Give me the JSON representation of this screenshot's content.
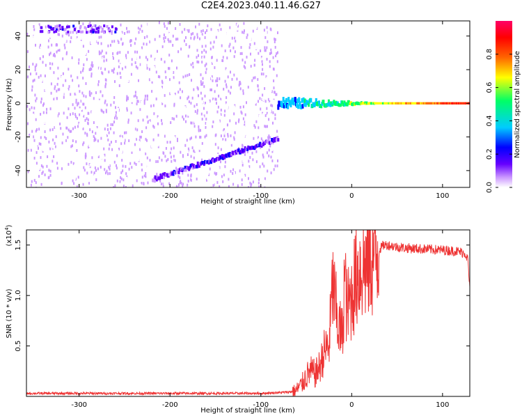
{
  "title": "C2E4.2023.040.11.46.G27",
  "chart_data": [
    {
      "type": "heatmap",
      "xlabel": "Height of straight line (km)",
      "ylabel": "Frequency (Hz)",
      "xlim": [
        -358,
        130
      ],
      "ylim": [
        -50,
        49
      ],
      "xticks": [
        -300,
        -200,
        -100,
        0,
        100
      ],
      "yticks": [
        -40,
        -20,
        0,
        20,
        40
      ],
      "noise_region_x": [
        -358,
        -82
      ],
      "lower_band": {
        "x": [
          -220,
          -82
        ],
        "y_start": -45,
        "y_end": -21
      },
      "upper_band": {
        "x": [
          -345,
          -260
        ],
        "y": 45
      },
      "carrier": {
        "x": [
          -82,
          130
        ],
        "y": 0,
        "amp_start": 0.45,
        "amp_end": 0.92
      },
      "colorbar": {
        "label": "Normalized spectral amplitude",
        "range": [
          0,
          1
        ],
        "ticks": [
          0.0,
          0.2,
          0.4,
          0.6,
          0.8
        ],
        "colors": [
          "#ffffff",
          "#cc99ff",
          "#6600ff",
          "#0000ff",
          "#00ccff",
          "#00ff66",
          "#ffff00",
          "#ff6600",
          "#ff0000",
          "#ff0066"
        ]
      }
    },
    {
      "type": "line",
      "xlabel": "Height of straight line (km)",
      "ylabel": "SNR (10 * v/v)",
      "y_multiplier_label": "(x10",
      "y_multiplier_exp": "4",
      "y_multiplier_close": ")",
      "xlim": [
        -358,
        130
      ],
      "ylim": [
        0,
        1.65
      ],
      "xticks": [
        -300,
        -200,
        -100,
        0,
        100
      ],
      "yticks": [
        0.5,
        1.0,
        1.5
      ],
      "ytick_labels": [
        "0.5",
        "1.0",
        "1.5"
      ],
      "color": "#ee3333",
      "series": [
        {
          "x": [
            -358,
            -300,
            -200,
            -100,
            -75,
            -62,
            -55,
            -50,
            -45,
            -40,
            -35,
            -30,
            -25,
            -21,
            -18,
            -15,
            -10,
            -8,
            -5,
            0,
            5,
            10,
            15,
            20,
            25,
            30,
            35,
            40,
            50,
            60,
            80,
            100,
            115,
            120,
            125,
            128,
            130
          ],
          "y": [
            0.03,
            0.03,
            0.03,
            0.03,
            0.04,
            0.05,
            0.12,
            0.2,
            0.25,
            0.22,
            0.3,
            0.45,
            0.5,
            1.1,
            0.9,
            0.7,
            0.6,
            1.2,
            0.85,
            1.0,
            1.2,
            1.28,
            1.3,
            1.35,
            1.4,
            1.45,
            1.5,
            1.5,
            1.48,
            1.47,
            1.46,
            1.45,
            1.44,
            1.43,
            1.42,
            1.35,
            1.05
          ]
        }
      ]
    }
  ]
}
